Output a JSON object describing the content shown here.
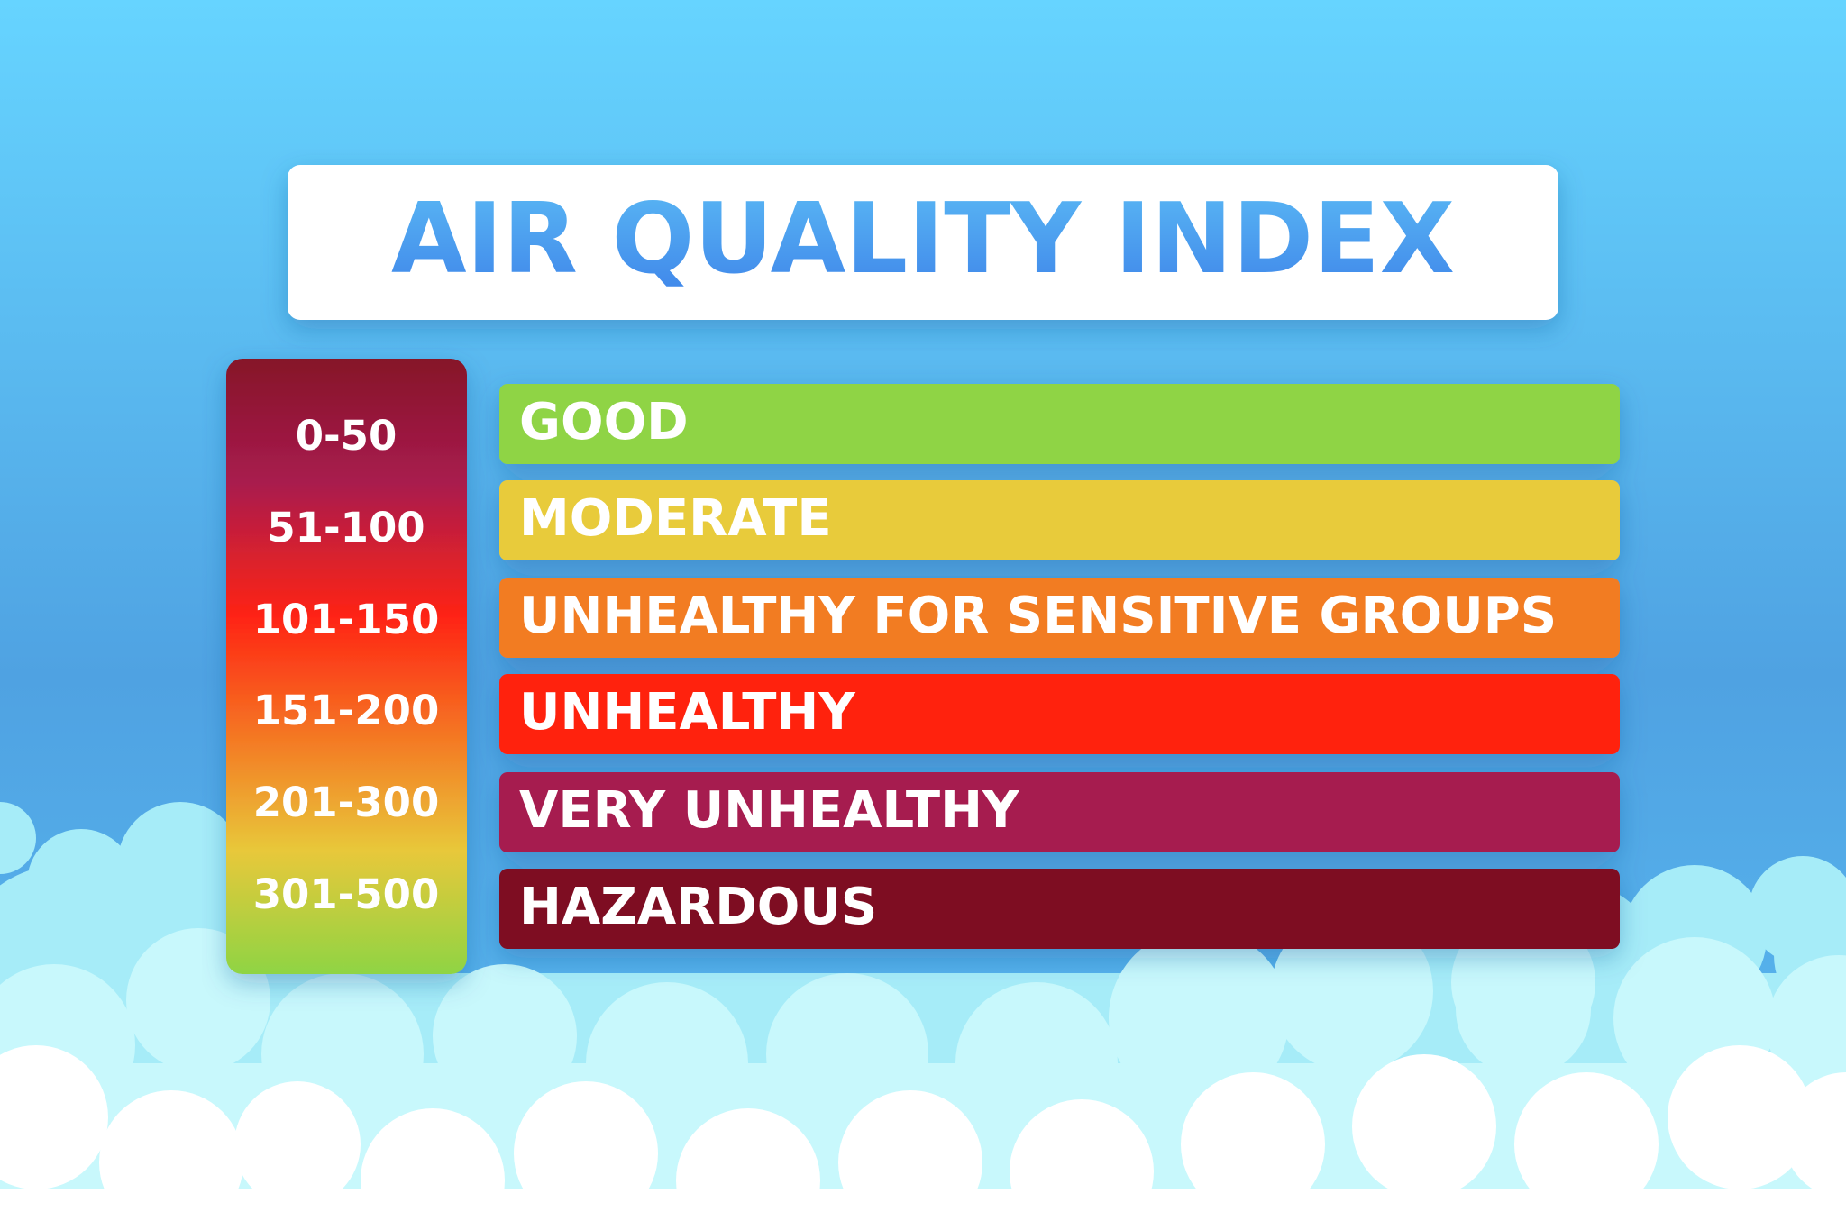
{
  "title": "AIR QUALITY INDEX",
  "levels": [
    {
      "range": "0-50",
      "label": "GOOD"
    },
    {
      "range": "51-100",
      "label": "MODERATE"
    },
    {
      "range": "101-150",
      "label": "UNHEALTHY FOR SENSITIVE GROUPS"
    },
    {
      "range": "151-200",
      "label": "UNHEALTHY"
    },
    {
      "range": "201-300",
      "label": "VERY UNHEALTHY"
    },
    {
      "range": "301-500",
      "label": "HAZARDOUS"
    }
  ]
}
